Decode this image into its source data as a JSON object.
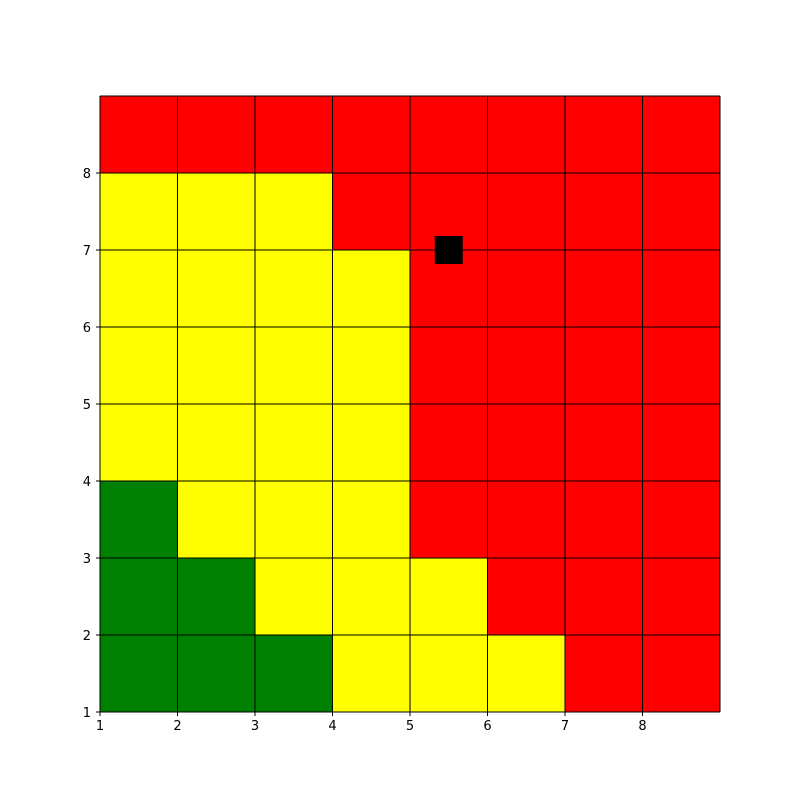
{
  "chart_data": {
    "type": "heatmap",
    "title": "",
    "xlabel": "",
    "ylabel": "",
    "xlim": [
      1,
      9
    ],
    "ylim": [
      1,
      9
    ],
    "x_ticks": [
      1,
      2,
      3,
      4,
      5,
      6,
      7,
      8
    ],
    "y_ticks": [
      1,
      2,
      3,
      4,
      5,
      6,
      7,
      8
    ],
    "x_tick_labels": [
      "1",
      "2",
      "3",
      "4",
      "5",
      "6",
      "7",
      "8"
    ],
    "y_tick_labels": [
      "1",
      "2",
      "3",
      "4",
      "5",
      "6",
      "7",
      "8"
    ],
    "grid": true,
    "colors": {
      "G": "#008000",
      "Y": "#ffff00",
      "R": "#ff0000",
      "grid_line": "#000000",
      "marker": "#000000"
    },
    "rows_top_to_bottom": [
      [
        "R",
        "R",
        "R",
        "R",
        "R",
        "R",
        "R",
        "R"
      ],
      [
        "Y",
        "Y",
        "Y",
        "R",
        "R",
        "R",
        "R",
        "R"
      ],
      [
        "Y",
        "Y",
        "Y",
        "Y",
        "R",
        "R",
        "R",
        "R"
      ],
      [
        "Y",
        "Y",
        "Y",
        "Y",
        "R",
        "R",
        "R",
        "R"
      ],
      [
        "Y",
        "Y",
        "Y",
        "Y",
        "R",
        "R",
        "R",
        "R"
      ],
      [
        "G",
        "Y",
        "Y",
        "Y",
        "R",
        "R",
        "R",
        "R"
      ],
      [
        "G",
        "G",
        "Y",
        "Y",
        "Y",
        "R",
        "R",
        "R"
      ],
      [
        "G",
        "G",
        "G",
        "Y",
        "Y",
        "Y",
        "R",
        "R"
      ]
    ],
    "marker": {
      "shape": "square",
      "x": 5.5,
      "y": 7.0
    }
  }
}
